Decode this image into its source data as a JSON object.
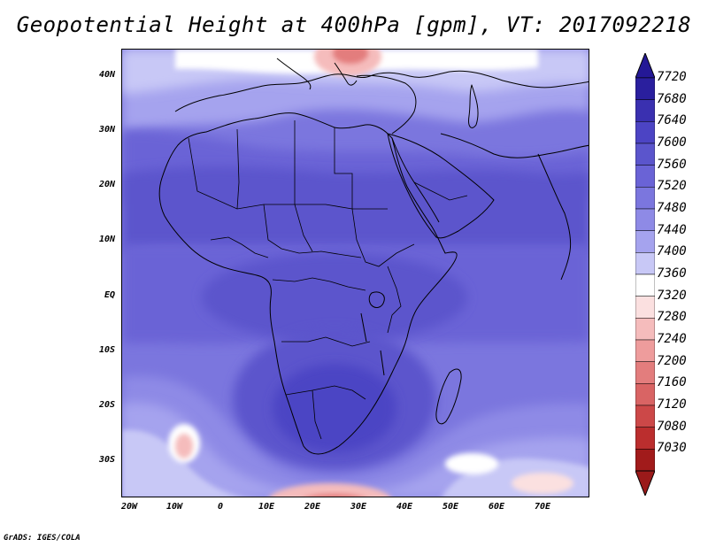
{
  "title": "Geopotential Height at 400hPa [gpm], VT: 2017092218",
  "credit": "GrADS: IGES/COLA",
  "map": {
    "lat_labels": [
      "40N",
      "30N",
      "20N",
      "10N",
      "EQ",
      "10S",
      "20S",
      "30S"
    ],
    "lon_labels": [
      "20W",
      "10W",
      "0",
      "10E",
      "20E",
      "30E",
      "40E",
      "50E",
      "60E",
      "70E"
    ],
    "lon_range": [
      -22,
      80
    ],
    "lat_range": [
      -37,
      45
    ]
  },
  "colorbar": {
    "labels": [
      "7720",
      "7680",
      "7640",
      "7600",
      "7560",
      "7520",
      "7480",
      "7440",
      "7400",
      "7360",
      "7320",
      "7280",
      "7240",
      "7200",
      "7160",
      "7120",
      "7080",
      "7030"
    ],
    "colors": [
      "#2a1f9e",
      "#3a30b0",
      "#4c44c4",
      "#5b55cc",
      "#6a63d6",
      "#7b76de",
      "#8e8ae6",
      "#a5a3ee",
      "#c8c8f6",
      "#ffffff",
      "#fbe0e0",
      "#f5bcbc",
      "#ee9c9c",
      "#e37d7d",
      "#d96464",
      "#cc4848",
      "#bb2e2e",
      "#a11b1b"
    ],
    "top_arrow_color": "#241896",
    "bottom_arrow_color": "#9b1a1a"
  }
}
